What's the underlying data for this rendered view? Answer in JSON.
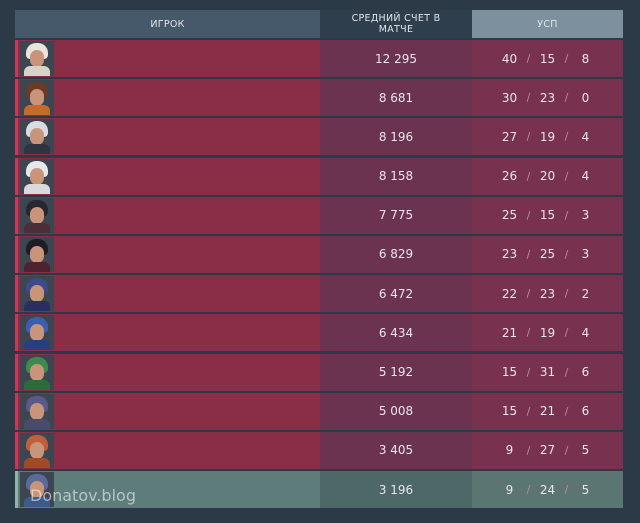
{
  "header": {
    "player": "ИГРОК",
    "avg_score": "СРЕДНИЙ СЧЕТ В МАТЧЕ",
    "kda": "УСП"
  },
  "separator": "/",
  "rows": [
    {
      "avg_score": "12 295",
      "kills": 40,
      "deaths": 15,
      "assists": 8
    },
    {
      "avg_score": "8 681",
      "kills": 30,
      "deaths": 23,
      "assists": 0
    },
    {
      "avg_score": "8 196",
      "kills": 27,
      "deaths": 19,
      "assists": 4
    },
    {
      "avg_score": "8 158",
      "kills": 26,
      "deaths": 20,
      "assists": 4
    },
    {
      "avg_score": "7 775",
      "kills": 25,
      "deaths": 15,
      "assists": 3
    },
    {
      "avg_score": "6 829",
      "kills": 23,
      "deaths": 25,
      "assists": 3
    },
    {
      "avg_score": "6 472",
      "kills": 22,
      "deaths": 23,
      "assists": 2
    },
    {
      "avg_score": "6 434",
      "kills": 21,
      "deaths": 19,
      "assists": 4
    },
    {
      "avg_score": "5 192",
      "kills": 15,
      "deaths": 31,
      "assists": 6
    },
    {
      "avg_score": "5 008",
      "kills": 15,
      "deaths": 21,
      "assists": 6
    },
    {
      "avg_score": "3 405",
      "kills": 9,
      "deaths": 27,
      "assists": 5
    },
    {
      "avg_score": "3 196",
      "kills": 9,
      "deaths": 24,
      "assists": 5
    }
  ],
  "watermark": "Donatov.blog"
}
